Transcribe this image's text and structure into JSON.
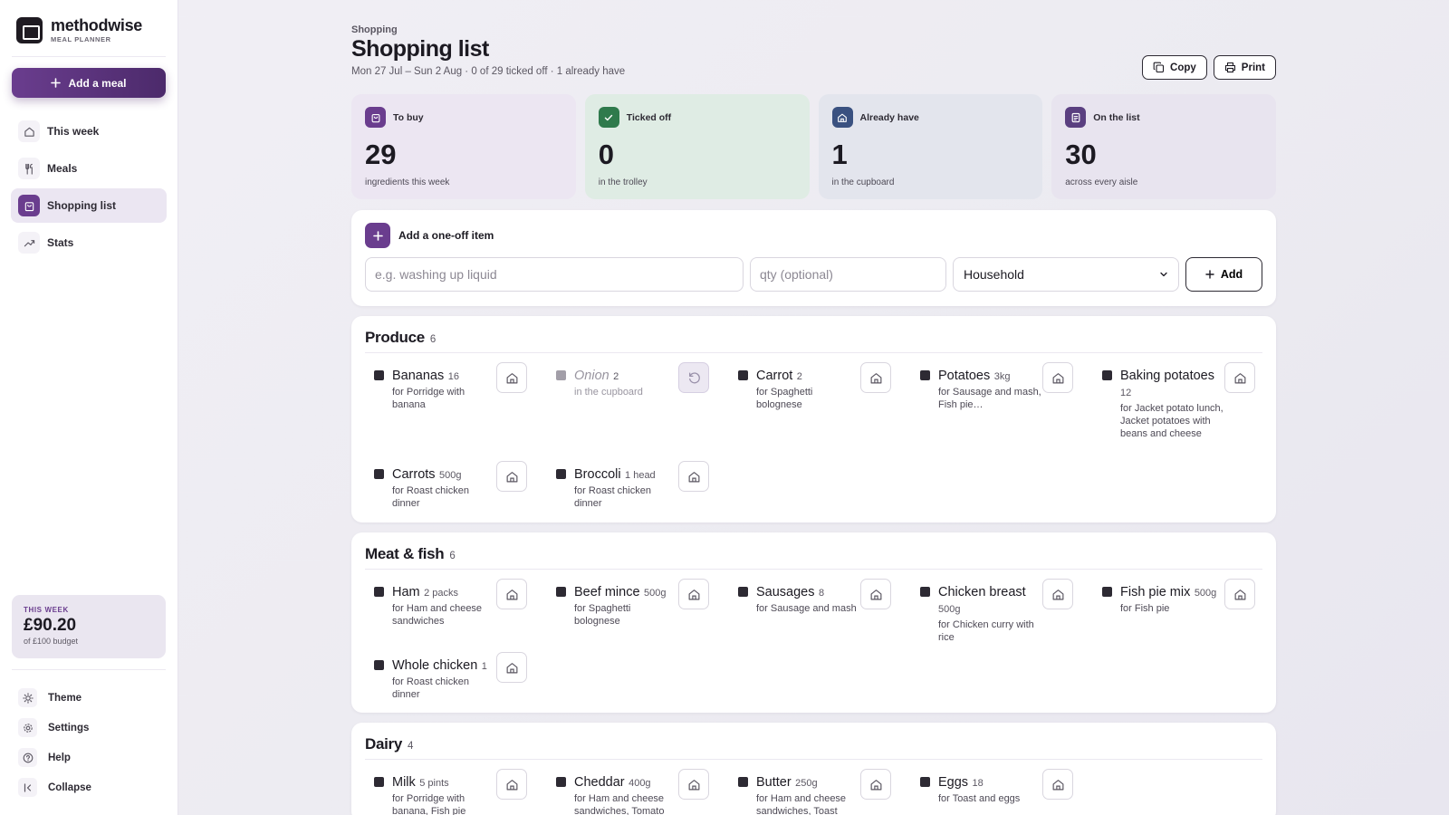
{
  "brand": {
    "name": "methodwise",
    "subtitle": "MEAL PLANNER"
  },
  "sidebar": {
    "add_meal": "Add a meal",
    "items": [
      {
        "label": "This week",
        "icon": "home-icon"
      },
      {
        "label": "Meals",
        "icon": "utensils-icon"
      },
      {
        "label": "Shopping list",
        "icon": "shopping-bag-icon",
        "active": true
      },
      {
        "label": "Stats",
        "icon": "trend-icon"
      }
    ],
    "budget": {
      "label": "THIS WEEK",
      "amount": "£90.20",
      "sub": "of £100 budget"
    },
    "bottom": [
      {
        "label": "Theme",
        "icon": "sun-icon"
      },
      {
        "label": "Settings",
        "icon": "gear-icon"
      },
      {
        "label": "Help",
        "icon": "help-icon"
      },
      {
        "label": "Collapse",
        "icon": "collapse-icon"
      }
    ]
  },
  "header": {
    "breadcrumb": "Shopping",
    "title": "Shopping list",
    "subtitle": "Mon 27 Jul – Sun 2 Aug · 0 of 29 ticked off · 1 already have",
    "copy": "Copy",
    "print": "Print"
  },
  "stats": [
    {
      "label": "To buy",
      "value": "29",
      "sub": "ingredients this week",
      "bg": "#ece6f2",
      "icon_bg": "#6a3d8e"
    },
    {
      "label": "Ticked off",
      "value": "0",
      "sub": "in the trolley",
      "bg": "#dfece4",
      "icon_bg": "#2f7a4c"
    },
    {
      "label": "Already have",
      "value": "1",
      "sub": "in the cupboard",
      "bg": "#e3e5ed",
      "icon_bg": "#3a5180"
    },
    {
      "label": "On the list",
      "value": "30",
      "sub": "across every aisle",
      "bg": "#e8e4ef",
      "icon_bg": "#5a3f80"
    }
  ],
  "add_item": {
    "heading": "Add a one-off item",
    "name_placeholder": "e.g. washing up liquid",
    "qty_placeholder": "qty (optional)",
    "category": "Household",
    "button": "Add"
  },
  "sections": [
    {
      "name": "Produce",
      "count": "6",
      "items": [
        {
          "name": "Bananas",
          "qty": "16",
          "for": "for Porridge with banana"
        },
        {
          "name": "Onion",
          "qty": "2",
          "for": "in the cupboard",
          "have": true
        },
        {
          "name": "Carrot",
          "qty": "2",
          "for": "for Spaghetti bolognese"
        },
        {
          "name": "Potatoes",
          "qty": "3kg",
          "for": "for Sausage and mash, Fish pie…"
        },
        {
          "name": "Baking potatoes",
          "qty": "12",
          "for": "for Jacket potato lunch, Jacket potatoes with beans and cheese"
        },
        {
          "name": "Carrots",
          "qty": "500g",
          "for": "for Roast chicken dinner"
        },
        {
          "name": "Broccoli",
          "qty": "1 head",
          "for": "for Roast chicken dinner"
        }
      ]
    },
    {
      "name": "Meat & fish",
      "count": "6",
      "items": [
        {
          "name": "Ham",
          "qty": "2 packs",
          "for": "for Ham and cheese sandwiches"
        },
        {
          "name": "Beef mince",
          "qty": "500g",
          "for": "for Spaghetti bolognese"
        },
        {
          "name": "Sausages",
          "qty": "8",
          "for": "for Sausage and mash"
        },
        {
          "name": "Chicken breast",
          "qty": "500g",
          "for": "for Chicken curry with rice"
        },
        {
          "name": "Fish pie mix",
          "qty": "500g",
          "for": "for Fish pie"
        },
        {
          "name": "Whole chicken",
          "qty": "1",
          "for": "for Roast chicken dinner"
        }
      ]
    },
    {
      "name": "Dairy",
      "count": "4",
      "items": [
        {
          "name": "Milk",
          "qty": "5 pints",
          "for": "for Porridge with banana, Fish pie"
        },
        {
          "name": "Cheddar",
          "qty": "400g",
          "for": "for Ham and cheese sandwiches, Tomato"
        },
        {
          "name": "Butter",
          "qty": "250g",
          "for": "for Ham and cheese sandwiches, Toast"
        },
        {
          "name": "Eggs",
          "qty": "18",
          "for": "for Toast and eggs"
        }
      ]
    }
  ]
}
